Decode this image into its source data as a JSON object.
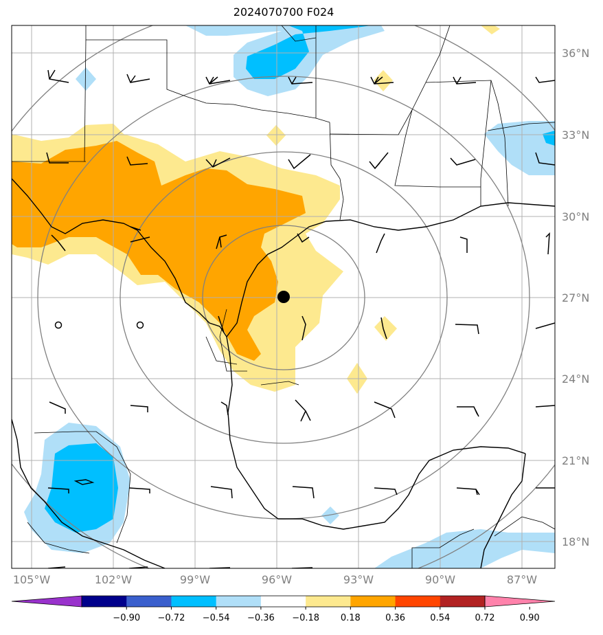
{
  "title": "2024070700 F024",
  "colors": {
    "light_blue": "#b0dff8",
    "blue": "#00bfff",
    "light_yellow": "#fde98f",
    "orange": "#ffa500",
    "grid": "#b0b0b0",
    "range_rings": "#808080"
  },
  "map": {
    "projection": "lat-lon",
    "lon_range": [
      -105.3,
      -85.8
    ],
    "lat_range": [
      17.0,
      37.0
    ],
    "center_marker": {
      "lon": -95.8,
      "lat": 27.0
    },
    "range_rings": 4,
    "lat_labels": [
      "36°N",
      "33°N",
      "30°N",
      "27°N",
      "24°N",
      "21°N",
      "18°N"
    ],
    "lon_labels": [
      "105°W",
      "102°W",
      "99°W",
      "96°W",
      "93°W",
      "90°W",
      "87°W"
    ],
    "features": [
      "coastline",
      "state borders",
      "country borders",
      "wind barbs",
      "filled contours"
    ]
  },
  "colorbar": {
    "levels": [
      "−0.90",
      "−0.72",
      "−0.54",
      "−0.36",
      "−0.18",
      "0.18",
      "0.36",
      "0.54",
      "0.72",
      "0.90"
    ],
    "colors": [
      "#9932cc",
      "#00008b",
      "#3a5fcd",
      "#00bfff",
      "#b0dff8",
      "#ffffff",
      "#fde98f",
      "#ffa500",
      "#ff4500",
      "#b22222",
      "#ff82ab"
    ]
  }
}
